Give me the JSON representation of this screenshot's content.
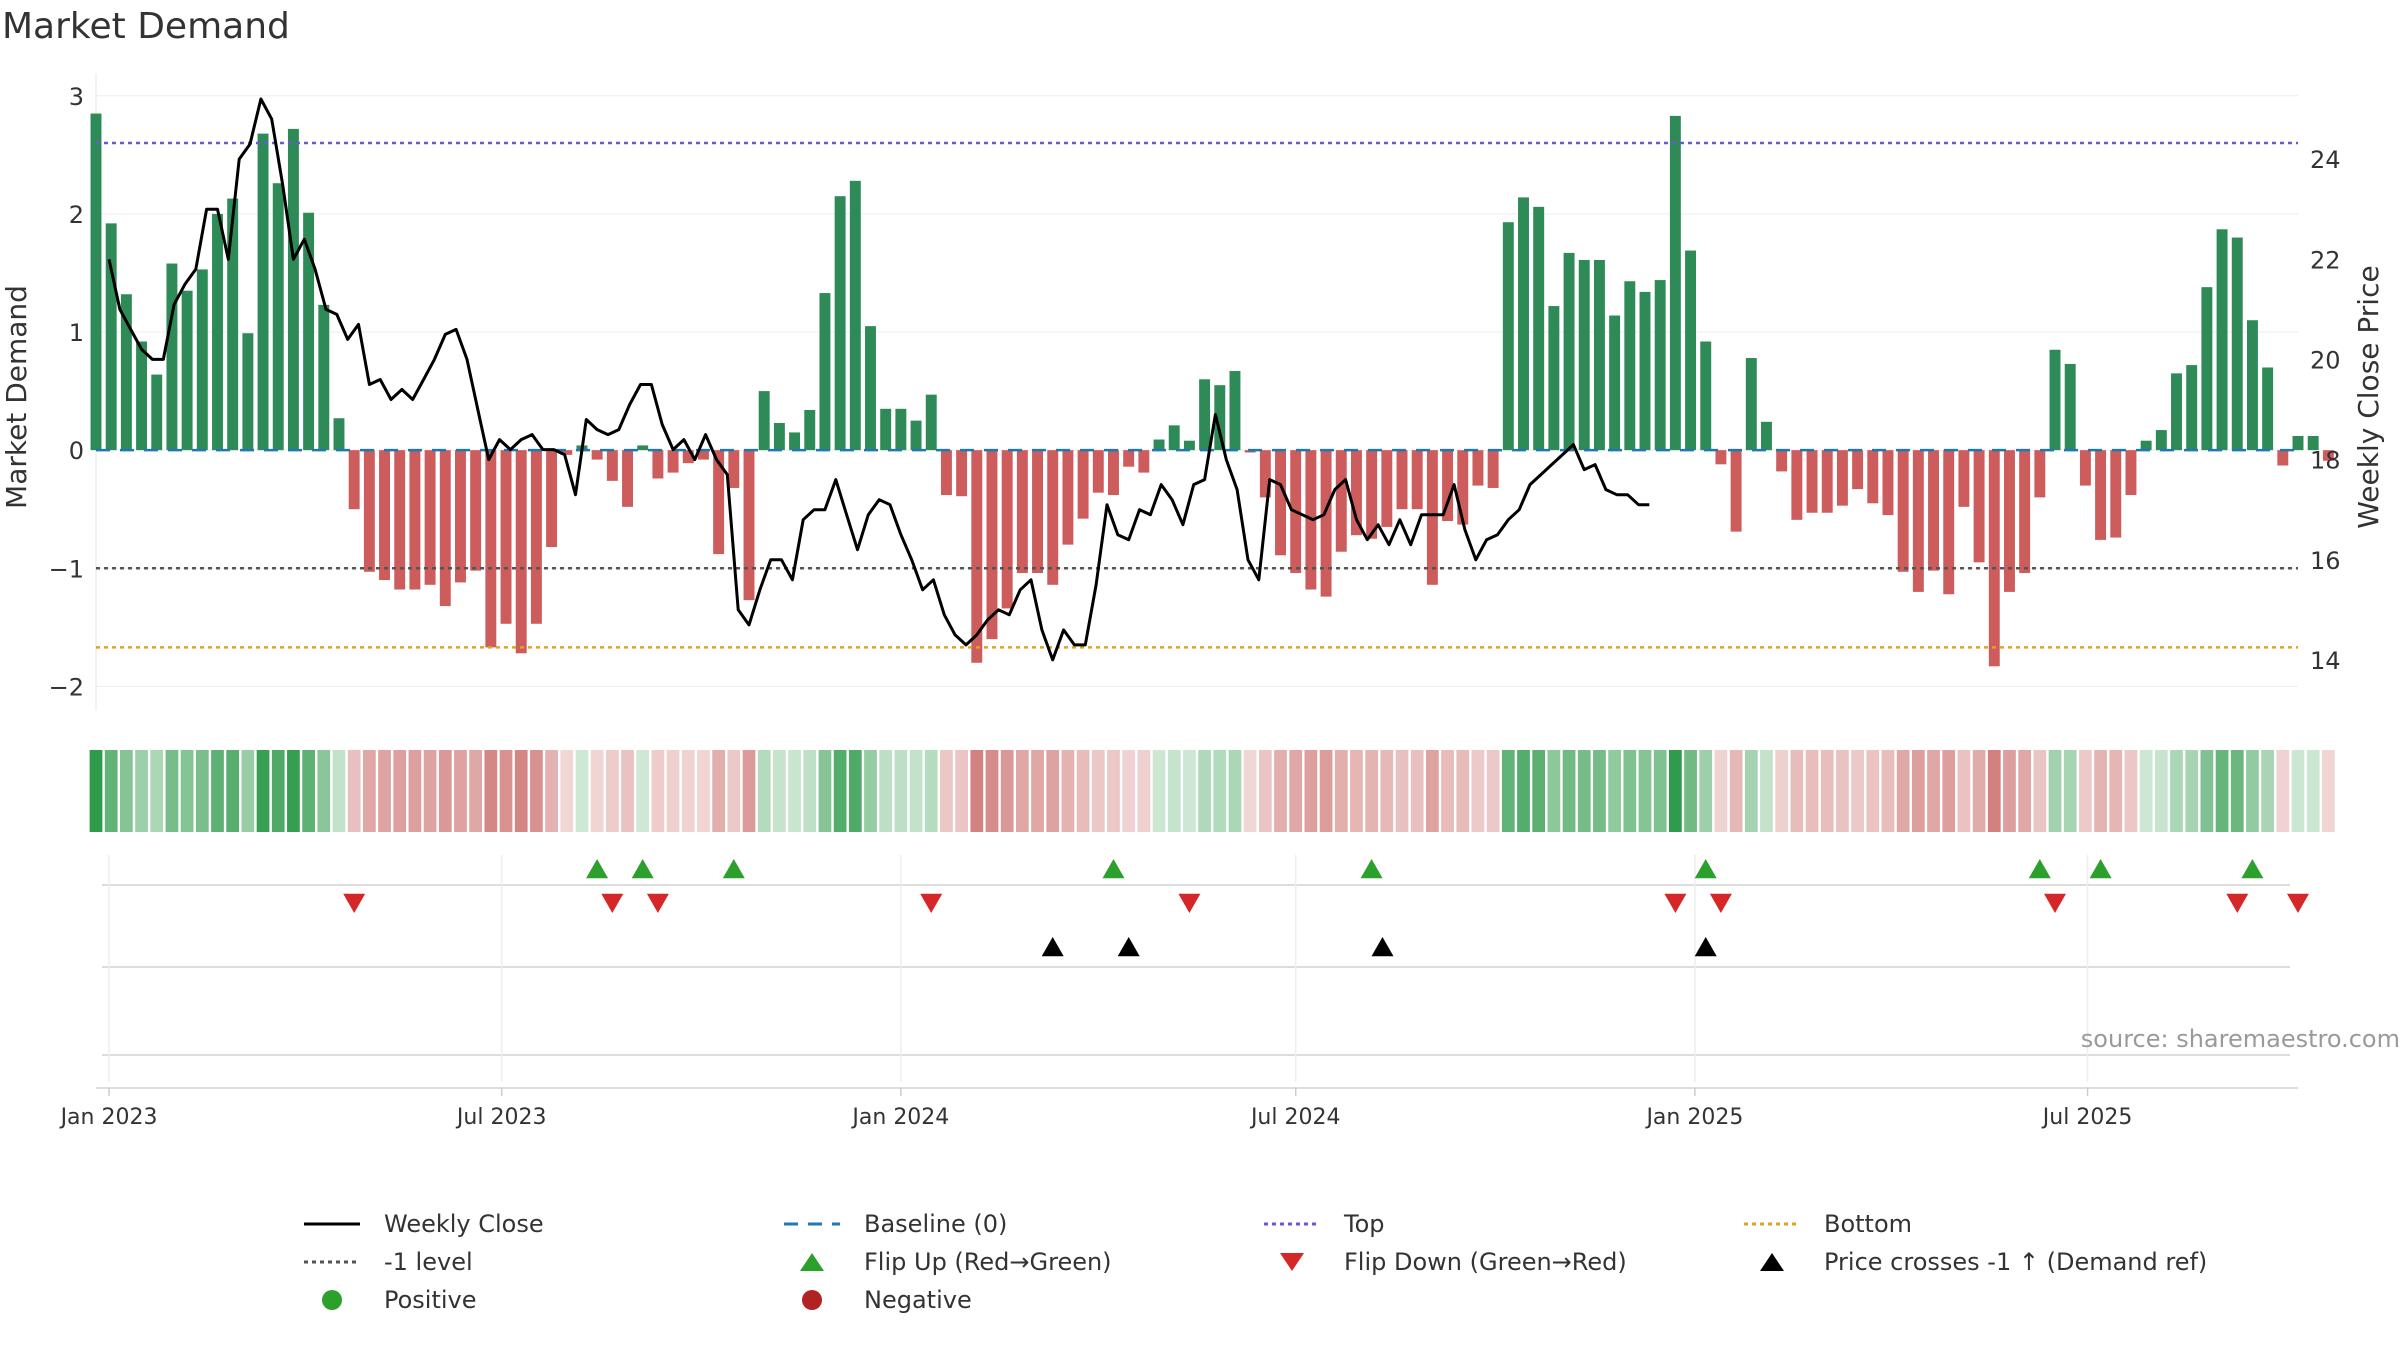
{
  "chart_data": {
    "type": "bar",
    "title": "Market Demand",
    "ylabel": "Market Demand",
    "y2label": "Weekly Close Price",
    "ylim": [
      -2.2,
      3.1
    ],
    "y2lim": [
      13.0,
      25.5
    ],
    "yticks": [
      3,
      2,
      1,
      0,
      -1,
      -2
    ],
    "y2ticks": [
      24,
      22,
      20,
      18,
      16,
      14
    ],
    "x_range": [
      "2022-12-26",
      "2025-10-06"
    ],
    "x_ticks": [
      {
        "date": "2023-01-01",
        "label": "Jan 2023"
      },
      {
        "date": "2023-07-01",
        "label": "Jul 2023"
      },
      {
        "date": "2024-01-01",
        "label": "Jan 2024"
      },
      {
        "date": "2024-07-01",
        "label": "Jul 2024"
      },
      {
        "date": "2025-01-01",
        "label": "Jan 2025"
      },
      {
        "date": "2025-07-01",
        "label": "Jul 2025"
      }
    ],
    "reference_lines": {
      "top": 2.6,
      "minus_one": -1,
      "bottom": -1.67,
      "baseline": 0
    },
    "demand_start": "2022-12-26",
    "demand": [
      2.85,
      1.92,
      1.32,
      0.92,
      0.64,
      1.58,
      1.35,
      1.53,
      2.0,
      2.13,
      0.99,
      2.68,
      2.26,
      2.72,
      2.01,
      1.23,
      0.27,
      -0.5,
      -1.03,
      -1.1,
      -1.18,
      -1.18,
      -1.14,
      -1.32,
      -1.12,
      -1.02,
      -1.67,
      -1.47,
      -1.72,
      -1.47,
      -0.82,
      -0.04,
      0.04,
      -0.08,
      -0.26,
      -0.48,
      0.04,
      -0.24,
      -0.19,
      -0.11,
      -0.08,
      -0.88,
      -0.32,
      -1.27,
      0.5,
      0.23,
      0.15,
      0.34,
      1.33,
      2.15,
      2.28,
      1.05,
      0.35,
      0.35,
      0.25,
      0.47,
      -0.38,
      -0.39,
      -1.8,
      -1.6,
      -1.34,
      -1.04,
      -1.04,
      -1.14,
      -0.8,
      -0.58,
      -0.36,
      -0.38,
      -0.14,
      -0.19,
      0.09,
      0.21,
      0.08,
      0.6,
      0.55,
      0.67,
      -0.02,
      -0.4,
      -0.89,
      -1.04,
      -1.18,
      -1.24,
      -0.86,
      -0.72,
      -0.75,
      -0.65,
      -0.5,
      -0.5,
      -1.14,
      -0.6,
      -0.63,
      -0.3,
      -0.32,
      1.93,
      2.14,
      2.06,
      1.22,
      1.67,
      1.61,
      1.61,
      1.14,
      1.43,
      1.34,
      1.44,
      2.83,
      1.69,
      0.92,
      -0.12,
      -0.69,
      0.78,
      0.24,
      -0.18,
      -0.59,
      -0.53,
      -0.53,
      -0.47,
      -0.33,
      -0.45,
      -0.55,
      -1.03,
      -1.2,
      -1.02,
      -1.22,
      -0.48,
      -0.95,
      -1.83,
      -1.2,
      -1.04,
      -0.4,
      0.85,
      0.73,
      -0.3,
      -0.76,
      -0.74,
      -0.38,
      0.08,
      0.17,
      0.65,
      0.72,
      1.38,
      1.87,
      1.8,
      1.1,
      0.7,
      -0.13,
      0.12,
      0.12,
      -0.09
    ],
    "close_start": "2023-01-01",
    "close_step_days": 5,
    "close": [
      22.0,
      21.0,
      20.6,
      20.2,
      20.0,
      20.0,
      21.1,
      21.5,
      21.8,
      23.0,
      23.0,
      22.0,
      24.0,
      24.3,
      25.2,
      24.8,
      23.5,
      22.0,
      22.4,
      21.8,
      21.0,
      20.9,
      20.4,
      20.7,
      19.5,
      19.6,
      19.2,
      19.4,
      19.2,
      19.6,
      20.0,
      20.5,
      20.6,
      20.0,
      19.0,
      18.0,
      18.4,
      18.2,
      18.4,
      18.5,
      18.2,
      18.2,
      18.1,
      17.3,
      18.8,
      18.6,
      18.5,
      18.6,
      19.1,
      19.5,
      19.5,
      18.7,
      18.2,
      18.4,
      18.0,
      18.5,
      18.0,
      17.7,
      15.0,
      14.7,
      15.4,
      16.0,
      16.0,
      15.6,
      16.8,
      17.0,
      17.0,
      17.6,
      16.9,
      16.2,
      16.9,
      17.2,
      17.1,
      16.5,
      16.0,
      15.4,
      15.6,
      14.9,
      14.5,
      14.3,
      14.5,
      14.8,
      15.0,
      14.9,
      15.4,
      15.6,
      14.6,
      14.0,
      14.6,
      14.3,
      14.3,
      15.5,
      17.1,
      16.5,
      16.4,
      17.0,
      16.9,
      17.5,
      17.2,
      16.7,
      17.5,
      17.6,
      18.9,
      18.0,
      17.4,
      16.0,
      15.6,
      17.6,
      17.5,
      17.0,
      16.9,
      16.8,
      16.9,
      17.4,
      17.6,
      16.8,
      16.4,
      16.7,
      16.3,
      16.8,
      16.3,
      16.9,
      16.9,
      16.9,
      17.5,
      16.6,
      16.0,
      16.4,
      16.5,
      16.8,
      17.0,
      17.5,
      17.7,
      17.9,
      18.1,
      18.3,
      17.8,
      17.9,
      17.4,
      17.3,
      17.3,
      17.1,
      17.1
    ],
    "flip_up": [
      "2023-08-14",
      "2023-09-04",
      "2023-10-16",
      "2024-04-08",
      "2024-08-05",
      "2025-01-06",
      "2025-06-09",
      "2025-07-07",
      "2025-09-15"
    ],
    "flip_down": [
      "2023-04-24",
      "2023-08-21",
      "2023-09-11",
      "2024-01-15",
      "2024-05-13",
      "2024-12-23",
      "2025-01-13",
      "2025-06-16",
      "2025-09-08",
      "2025-10-06"
    ],
    "price_cross": [
      "2024-03-11",
      "2024-04-15",
      "2024-08-10",
      "2025-01-06"
    ],
    "legend": [
      {
        "label": "Weekly Close",
        "symbol": "line",
        "color": "#000000"
      },
      {
        "label": "Baseline (0)",
        "symbol": "dash",
        "color": "#1f77b4"
      },
      {
        "label": "Top",
        "symbol": "dot",
        "color": "#6a5acd"
      },
      {
        "label": "Bottom",
        "symbol": "dot",
        "color": "#daa520"
      },
      {
        "label": "-1 level",
        "symbol": "dot",
        "color": "#555555"
      },
      {
        "label": "Flip Up (Red→Green)",
        "symbol": "tri-up",
        "color": "#2ca02c"
      },
      {
        "label": "Flip Down (Green→Red)",
        "symbol": "tri-down",
        "color": "#d62728"
      },
      {
        "label": "Price crosses -1 ↑ (Demand ref)",
        "symbol": "tri-up",
        "color": "#000000"
      },
      {
        "label": "Positive",
        "symbol": "circle",
        "color": "#2ca02c"
      },
      {
        "label": "Negative",
        "symbol": "circle",
        "color": "#b22222"
      }
    ],
    "source": "source: sharemaestro.com"
  },
  "colors": {
    "positive_bar": "#2e8b57",
    "negative_bar": "#cd5c5c",
    "close_line": "#000000",
    "top": "#6a5acd",
    "bottom": "#daa520",
    "minus_one": "#555555",
    "baseline": "#1f77b4",
    "flip_up": "#2ca02c",
    "flip_down": "#d62728",
    "cross": "#000000"
  }
}
